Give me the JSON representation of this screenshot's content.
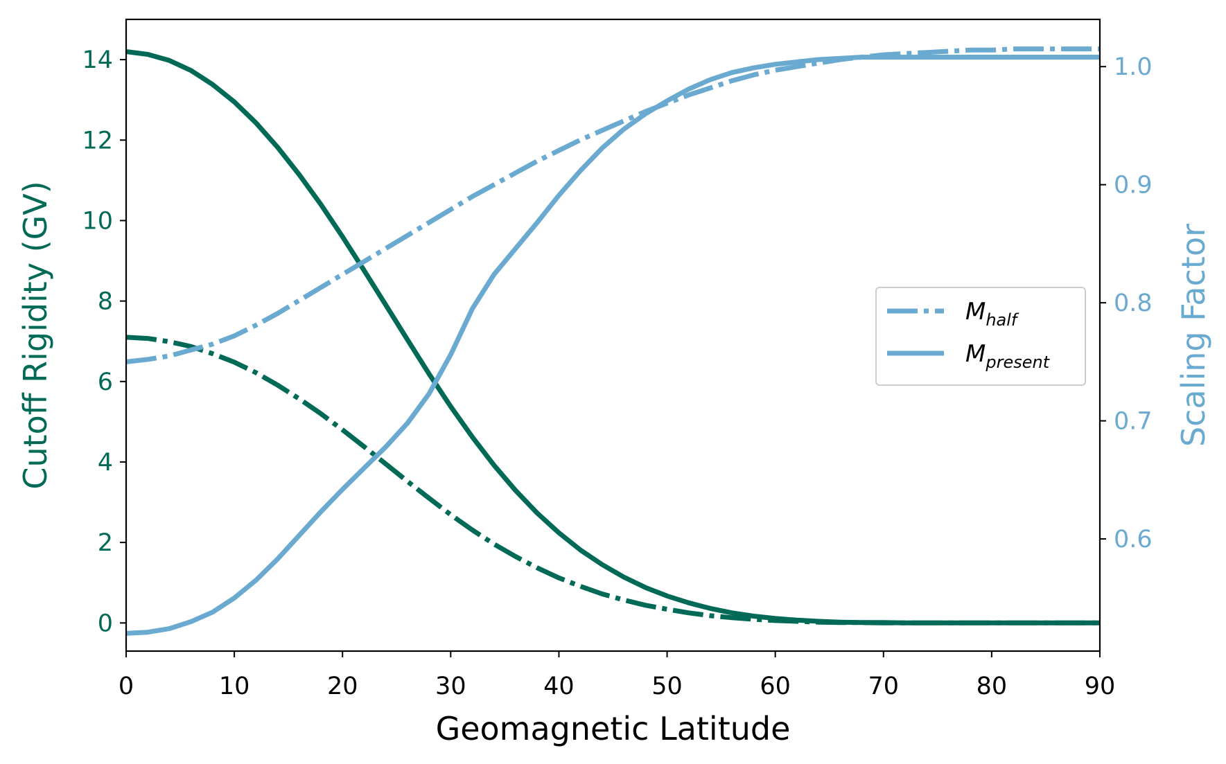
{
  "chart_data": {
    "type": "line",
    "xlabel": "Geomagnetic Latitude",
    "ylabel_left": "Cutoff Rigidity (GV)",
    "ylabel_right": "Scaling Factor",
    "xlim": [
      0,
      90
    ],
    "ylim_left": [
      -0.7,
      15.0
    ],
    "ylim_right": [
      0.505,
      1.04
    ],
    "x_ticks": [
      0,
      10,
      20,
      30,
      40,
      50,
      60,
      70,
      80,
      90
    ],
    "y_left_ticks": [
      0,
      2,
      4,
      6,
      8,
      10,
      12,
      14
    ],
    "y_right_ticks": [
      "0.6",
      "0.7",
      "0.8",
      "0.9",
      "1.0"
    ],
    "grid": false,
    "legend": {
      "placement": "center-right",
      "entries": [
        {
          "base": "M",
          "sub": "half",
          "style": "dashdot"
        },
        {
          "base": "M",
          "sub": "present",
          "style": "solid"
        }
      ]
    },
    "colors": {
      "left_axis": "#006a57",
      "right_axis": "#6aaad1"
    },
    "series": [
      {
        "axis": "left",
        "style": "solid",
        "x": [
          0,
          2,
          4,
          6,
          8,
          10,
          12,
          14,
          16,
          18,
          20,
          22,
          24,
          26,
          28,
          30,
          32,
          34,
          36,
          38,
          40,
          42,
          44,
          46,
          48,
          50,
          52,
          54,
          56,
          58,
          60,
          62,
          64,
          66,
          68,
          70,
          72,
          74,
          76,
          78,
          80,
          82,
          84,
          86,
          88,
          90
        ],
        "y": [
          14.2,
          14.13,
          13.98,
          13.73,
          13.38,
          12.95,
          12.43,
          11.82,
          11.14,
          10.4,
          9.6,
          8.76,
          7.9,
          7.04,
          6.19,
          5.38,
          4.62,
          3.92,
          3.29,
          2.73,
          2.24,
          1.81,
          1.45,
          1.14,
          0.88,
          0.67,
          0.5,
          0.36,
          0.25,
          0.17,
          0.11,
          0.07,
          0.04,
          0.02,
          0.01,
          0.01,
          0,
          0,
          0,
          0,
          0,
          0,
          0,
          0,
          0,
          0
        ]
      },
      {
        "axis": "left",
        "style": "dashdot",
        "x": [
          0,
          2,
          4,
          6,
          8,
          10,
          12,
          14,
          16,
          18,
          20,
          22,
          24,
          26,
          28,
          30,
          32,
          34,
          36,
          38,
          40,
          42,
          44,
          46,
          48,
          50,
          52,
          54,
          56,
          58,
          60,
          62,
          64,
          66,
          68,
          70,
          72,
          74,
          76,
          78,
          80,
          82,
          84,
          86,
          88,
          90
        ],
        "y": [
          7.1,
          7.07,
          6.99,
          6.87,
          6.69,
          6.48,
          6.22,
          5.91,
          5.57,
          5.2,
          4.8,
          4.38,
          3.95,
          3.52,
          3.1,
          2.69,
          2.31,
          1.96,
          1.65,
          1.37,
          1.12,
          0.91,
          0.72,
          0.57,
          0.44,
          0.34,
          0.25,
          0.18,
          0.13,
          0.09,
          0.06,
          0.04,
          0.02,
          0.01,
          0.01,
          0,
          0,
          0,
          0,
          0,
          0,
          0,
          0,
          0,
          0,
          0
        ]
      },
      {
        "axis": "right",
        "style": "solid",
        "x": [
          0,
          2,
          4,
          6,
          8,
          10,
          12,
          14,
          16,
          18,
          20,
          22,
          24,
          26,
          28,
          30,
          32,
          34,
          36,
          38,
          40,
          42,
          44,
          46,
          48,
          50,
          52,
          54,
          56,
          58,
          60,
          62,
          64,
          66,
          68,
          70,
          72,
          74,
          76,
          78,
          80,
          82,
          84,
          86,
          88,
          90
        ],
        "y": [
          0.52,
          0.521,
          0.524,
          0.53,
          0.538,
          0.55,
          0.565,
          0.583,
          0.603,
          0.623,
          0.642,
          0.66,
          0.678,
          0.698,
          0.723,
          0.756,
          0.795,
          0.824,
          0.846,
          0.868,
          0.891,
          0.912,
          0.931,
          0.947,
          0.96,
          0.971,
          0.981,
          0.989,
          0.995,
          0.999,
          1.002,
          1.004,
          1.006,
          1.007,
          1.008,
          1.008,
          1.008,
          1.008,
          1.008,
          1.008,
          1.008,
          1.008,
          1.008,
          1.008,
          1.008,
          1.008
        ]
      },
      {
        "axis": "right",
        "style": "dashdot",
        "x": [
          0,
          2,
          4,
          6,
          8,
          10,
          12,
          14,
          16,
          18,
          20,
          22,
          24,
          26,
          28,
          30,
          32,
          34,
          36,
          38,
          40,
          42,
          44,
          46,
          48,
          50,
          52,
          54,
          56,
          58,
          60,
          62,
          64,
          66,
          68,
          70,
          72,
          74,
          76,
          78,
          80,
          82,
          84,
          86,
          88,
          90
        ],
        "y": [
          0.75,
          0.752,
          0.755,
          0.76,
          0.765,
          0.772,
          0.781,
          0.791,
          0.802,
          0.813,
          0.824,
          0.835,
          0.846,
          0.857,
          0.868,
          0.879,
          0.89,
          0.9,
          0.91,
          0.92,
          0.929,
          0.938,
          0.946,
          0.954,
          0.962,
          0.969,
          0.976,
          0.982,
          0.988,
          0.993,
          0.997,
          1.0,
          1.003,
          1.006,
          1.008,
          1.01,
          1.011,
          1.012,
          1.013,
          1.014,
          1.014,
          1.015,
          1.015,
          1.015,
          1.015,
          1.015
        ]
      }
    ]
  }
}
